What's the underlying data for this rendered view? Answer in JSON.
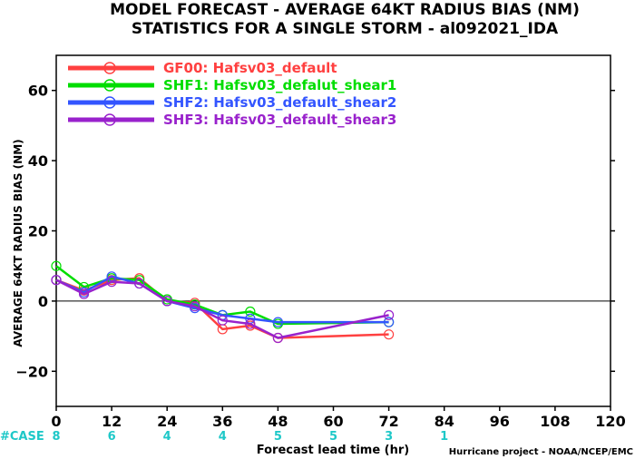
{
  "chart_data": {
    "type": "line",
    "title": "MODEL FORECAST - AVERAGE 64KT RADIUS BIAS (NM)",
    "subtitle": "STATISTICS FOR A SINGLE STORM - al092021_IDA",
    "xlabel": "Forecast lead time (hr)",
    "ylabel": "AVERAGE 64KT RADIUS BIAS (NM)",
    "xlim": [
      0,
      120
    ],
    "ylim": [
      -30,
      70
    ],
    "x_ticks": [
      0,
      12,
      24,
      36,
      48,
      60,
      72,
      84,
      96,
      108,
      120
    ],
    "y_ticks": [
      -20,
      0,
      20,
      40,
      60
    ],
    "reference_line": 0,
    "legend_position": "top-left",
    "series": [
      {
        "name": "GF00: Hafsv03_default",
        "color": "#ff4040",
        "x": [
          0,
          6,
          12,
          18,
          24,
          30,
          36,
          42,
          48,
          72
        ],
        "y": [
          6.0,
          3.0,
          6.0,
          6.5,
          0.0,
          -0.5,
          -8.0,
          -7.0,
          -10.5,
          -9.5
        ]
      },
      {
        "name": "SHF1: Hafsv03_defalut_shear1",
        "color": "#00dd00",
        "x": [
          0,
          6,
          12,
          18,
          24,
          30,
          36,
          42,
          48,
          72
        ],
        "y": [
          10.0,
          4.0,
          6.5,
          6.0,
          0.5,
          -1.0,
          -4.0,
          -3.0,
          -6.5,
          -6.0
        ]
      },
      {
        "name": "SHF2: Hafsv03_default_shear2",
        "color": "#3355ff",
        "x": [
          0,
          6,
          12,
          18,
          24,
          30,
          36,
          42,
          48,
          72
        ],
        "y": [
          6.0,
          2.5,
          7.0,
          5.0,
          0.0,
          -2.0,
          -4.0,
          -5.0,
          -6.0,
          -6.0
        ]
      },
      {
        "name": "SHF3: Hafsv03_default_shear3",
        "color": "#9922cc",
        "x": [
          0,
          6,
          12,
          18,
          24,
          30,
          36,
          42,
          48,
          72
        ],
        "y": [
          6.0,
          2.0,
          5.5,
          5.0,
          0.0,
          -1.5,
          -5.5,
          -6.5,
          -10.5,
          -4.0
        ]
      }
    ],
    "case_label": "#CASE",
    "cases": [
      {
        "x": 0,
        "n": "8"
      },
      {
        "x": 12,
        "n": "6"
      },
      {
        "x": 24,
        "n": "4"
      },
      {
        "x": 36,
        "n": "4"
      },
      {
        "x": 48,
        "n": "5"
      },
      {
        "x": 60,
        "n": "5"
      },
      {
        "x": 72,
        "n": "3"
      },
      {
        "x": 84,
        "n": "1"
      }
    ],
    "credit": "Hurricane project - NOAA/NCEP/EMC"
  }
}
